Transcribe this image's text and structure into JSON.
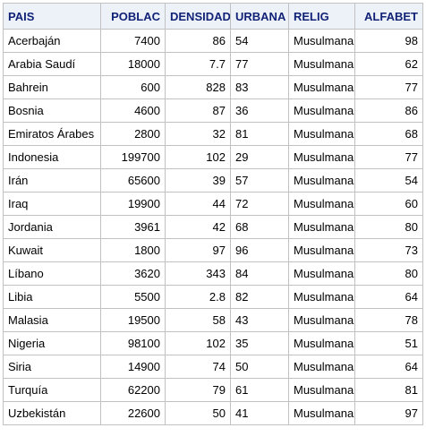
{
  "table": {
    "columns": [
      {
        "key": "pais",
        "label": "PAIS",
        "align": "left"
      },
      {
        "key": "poblac",
        "label": "POBLAC",
        "align": "right"
      },
      {
        "key": "densidad",
        "label": "DENSIDAD",
        "align": "right"
      },
      {
        "key": "urbana",
        "label": "URBANA",
        "align": "left"
      },
      {
        "key": "relig",
        "label": "RELIG",
        "align": "left"
      },
      {
        "key": "alfabet",
        "label": "ALFABET",
        "align": "right"
      }
    ],
    "rows": [
      {
        "pais": "Acerbaján",
        "poblac": "7400",
        "densidad": "86",
        "urbana": "54",
        "relig": "Musulmana",
        "alfabet": "98"
      },
      {
        "pais": "Arabia Saudí",
        "poblac": "18000",
        "densidad": "7.7",
        "urbana": "77",
        "relig": "Musulmana",
        "alfabet": "62"
      },
      {
        "pais": "Bahrein",
        "poblac": "600",
        "densidad": "828",
        "urbana": "83",
        "relig": "Musulmana",
        "alfabet": "77"
      },
      {
        "pais": "Bosnia",
        "poblac": "4600",
        "densidad": "87",
        "urbana": "36",
        "relig": "Musulmana",
        "alfabet": "86"
      },
      {
        "pais": "Emiratos Árabes",
        "poblac": "2800",
        "densidad": "32",
        "urbana": "81",
        "relig": "Musulmana",
        "alfabet": "68"
      },
      {
        "pais": "Indonesia",
        "poblac": "199700",
        "densidad": "102",
        "urbana": "29",
        "relig": "Musulmana",
        "alfabet": "77"
      },
      {
        "pais": "Irán",
        "poblac": "65600",
        "densidad": "39",
        "urbana": "57",
        "relig": "Musulmana",
        "alfabet": "54"
      },
      {
        "pais": "Iraq",
        "poblac": "19900",
        "densidad": "44",
        "urbana": "72",
        "relig": "Musulmana",
        "alfabet": "60"
      },
      {
        "pais": "Jordania",
        "poblac": "3961",
        "densidad": "42",
        "urbana": "68",
        "relig": "Musulmana",
        "alfabet": "80"
      },
      {
        "pais": "Kuwait",
        "poblac": "1800",
        "densidad": "97",
        "urbana": "96",
        "relig": "Musulmana",
        "alfabet": "73"
      },
      {
        "pais": "Líbano",
        "poblac": "3620",
        "densidad": "343",
        "urbana": "84",
        "relig": "Musulmana",
        "alfabet": "80"
      },
      {
        "pais": "Libia",
        "poblac": "5500",
        "densidad": "2.8",
        "urbana": "82",
        "relig": "Musulmana",
        "alfabet": "64"
      },
      {
        "pais": "Malasia",
        "poblac": "19500",
        "densidad": "58",
        "urbana": "43",
        "relig": "Musulmana",
        "alfabet": "78"
      },
      {
        "pais": "Nigeria",
        "poblac": "98100",
        "densidad": "102",
        "urbana": "35",
        "relig": "Musulmana",
        "alfabet": "51"
      },
      {
        "pais": "Siria",
        "poblac": "14900",
        "densidad": "74",
        "urbana": "50",
        "relig": "Musulmana",
        "alfabet": "64"
      },
      {
        "pais": "Turquía",
        "poblac": "62200",
        "densidad": "79",
        "urbana": "61",
        "relig": "Musulmana",
        "alfabet": "81"
      },
      {
        "pais": "Uzbekistán",
        "poblac": "22600",
        "densidad": "50",
        "urbana": "41",
        "relig": "Musulmana",
        "alfabet": "97"
      }
    ]
  },
  "colors": {
    "header_background": "#edf2f9",
    "header_text": "#112277",
    "grid_line": "#c1c1c1",
    "cell_text": "#000000"
  }
}
